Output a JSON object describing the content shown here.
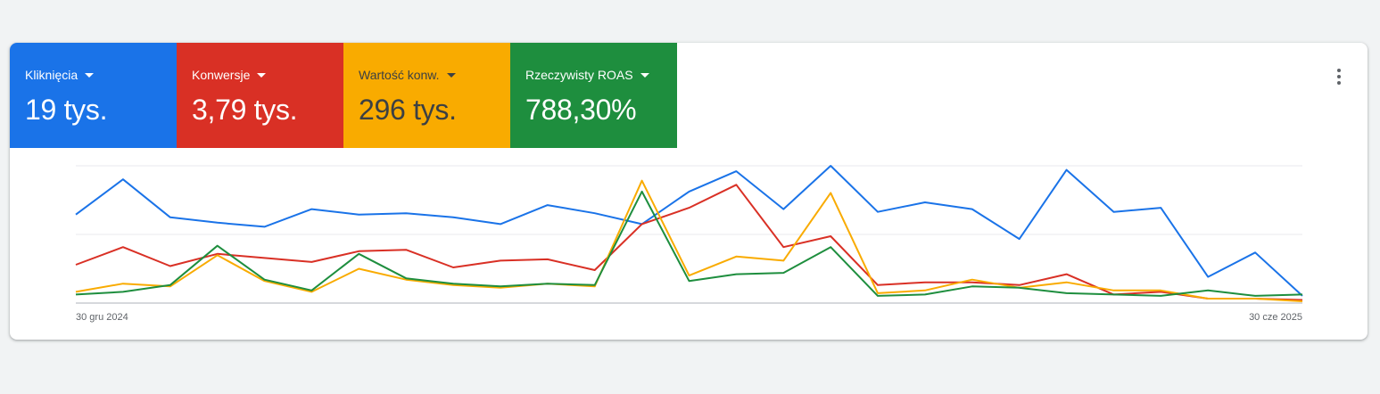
{
  "metrics": [
    {
      "label": "Kliknięcia",
      "value": "19 tys.",
      "color": "#1a73e8",
      "text_color": "#ffffff"
    },
    {
      "label": "Konwersje",
      "value": "3,79 tys.",
      "color": "#d93025",
      "text_color": "#ffffff"
    },
    {
      "label": "Wartość konw.",
      "value": "296 tys.",
      "color": "#f9ab00",
      "text_color": "#3c4043"
    },
    {
      "label": "Rzeczywisty ROAS",
      "value": "788,30%",
      "color": "#1e8e3e",
      "text_color": "#ffffff"
    }
  ],
  "more_icon": "more-vert-icon",
  "chart_data": {
    "type": "line",
    "x_start_label": "30 gru 2024",
    "x_end_label": "30 cze 2025",
    "grid": true,
    "ylim": [
      0,
      100
    ],
    "series": [
      {
        "color": "#1a73e8",
        "values": [
          64,
          90,
          62,
          58,
          55,
          68,
          64,
          65,
          62,
          57,
          71,
          65,
          57,
          81,
          96,
          68,
          100,
          66,
          73,
          68,
          46,
          97,
          66,
          69,
          18,
          36,
          4
        ]
      },
      {
        "color": "#d93025",
        "values": [
          27,
          40,
          26,
          35,
          32,
          29,
          37,
          38,
          25,
          30,
          31,
          23,
          57,
          69,
          86,
          40,
          48,
          12,
          14,
          14,
          12,
          20,
          5,
          7,
          2,
          2,
          1
        ]
      },
      {
        "color": "#f9ab00",
        "values": [
          7,
          13,
          11,
          34,
          15,
          7,
          24,
          16,
          12,
          10,
          13,
          11,
          89,
          19,
          33,
          30,
          80,
          6,
          8,
          16,
          10,
          14,
          8,
          8,
          2,
          2,
          0
        ]
      },
      {
        "color": "#1e8e3e",
        "values": [
          5,
          7,
          12,
          41,
          16,
          8,
          35,
          17,
          13,
          11,
          13,
          12,
          81,
          15,
          20,
          21,
          40,
          4,
          5,
          11,
          10,
          6,
          5,
          4,
          8,
          4,
          5
        ]
      }
    ]
  }
}
